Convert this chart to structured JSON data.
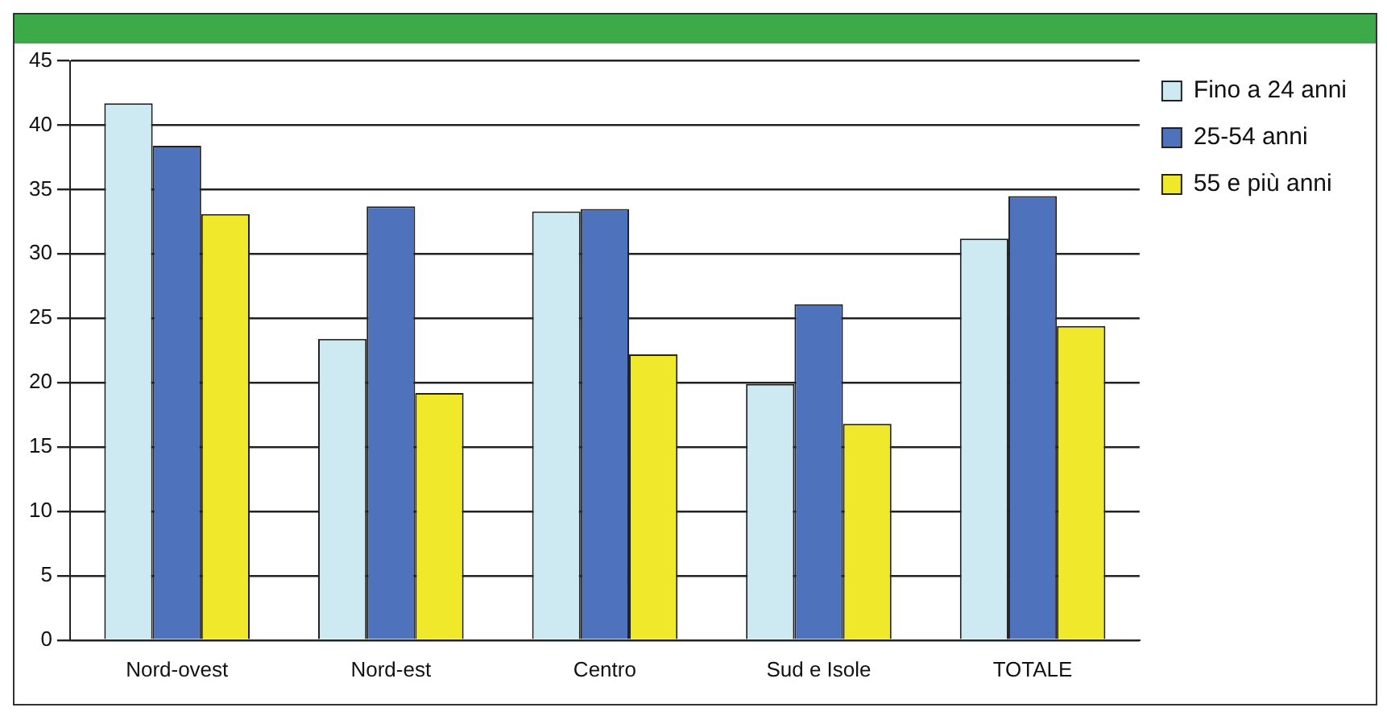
{
  "chart_data": {
    "type": "bar",
    "categories": [
      "Nord-ovest",
      "Nord-est",
      "Centro",
      "Sud e Isole",
      "TOTALE"
    ],
    "series": [
      {
        "name": "Fino a 24 anni",
        "color": "#cdeaf2",
        "values": [
          41.7,
          23.4,
          33.3,
          19.9,
          31.2
        ]
      },
      {
        "name": "25-54 anni",
        "color": "#4f72bd",
        "values": [
          38.4,
          33.7,
          33.5,
          26.1,
          34.5
        ]
      },
      {
        "name": "55 e più anni",
        "color": "#f0e82a",
        "values": [
          33.1,
          19.2,
          22.2,
          16.8,
          24.4
        ]
      }
    ],
    "ylim": [
      0,
      45
    ],
    "yticks": [
      0,
      5,
      10,
      15,
      20,
      25,
      30,
      35,
      40,
      45
    ],
    "grid": "y",
    "legend": "top right"
  }
}
